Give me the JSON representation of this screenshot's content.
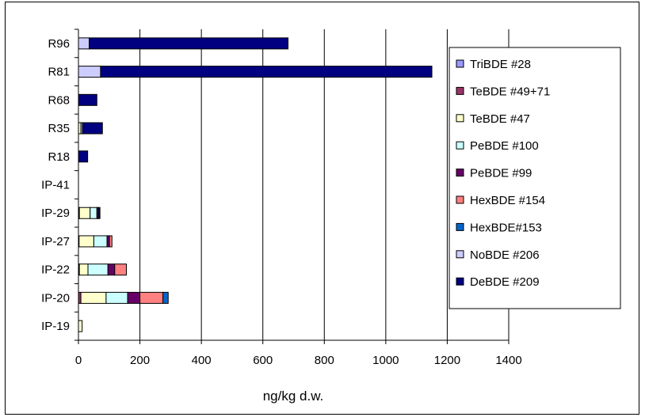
{
  "chart_data": {
    "type": "bar",
    "orientation": "horizontal",
    "stacked": true,
    "categories": [
      "IP-19",
      "IP-20",
      "IP-22",
      "IP-27",
      "IP-29",
      "IP-41",
      "R18",
      "R35",
      "R68",
      "R81",
      "R96"
    ],
    "series": [
      {
        "name": "TriBDE #28",
        "color": "#9999ff",
        "values": [
          0,
          0,
          0,
          0,
          0,
          0,
          0,
          0,
          0,
          0,
          0
        ]
      },
      {
        "name": "TeBDE #49+71",
        "color": "#993366",
        "values": [
          0,
          8,
          3,
          2,
          3,
          0,
          0,
          0,
          0,
          0,
          0
        ]
      },
      {
        "name": "TeBDE #47",
        "color": "#ffffcc",
        "values": [
          12,
          82,
          28,
          48,
          35,
          0,
          0,
          8,
          0,
          0,
          0
        ]
      },
      {
        "name": "PeBDE #100",
        "color": "#ccffff",
        "values": [
          0,
          70,
          65,
          43,
          22,
          0,
          0,
          0,
          0,
          0,
          0
        ]
      },
      {
        "name": "PeBDE #99",
        "color": "#660066",
        "values": [
          0,
          40,
          22,
          8,
          5,
          0,
          0,
          0,
          0,
          0,
          0
        ]
      },
      {
        "name": "HexBDE #154",
        "color": "#ff8080",
        "values": [
          0,
          75,
          38,
          8,
          0,
          0,
          0,
          0,
          0,
          0,
          0
        ]
      },
      {
        "name": "HexBDE#153",
        "color": "#0066cc",
        "values": [
          0,
          17,
          0,
          0,
          0,
          0,
          0,
          0,
          0,
          0,
          0
        ]
      },
      {
        "name": "NoBDE #206",
        "color": "#ccccff",
        "values": [
          0,
          0,
          0,
          0,
          0,
          0,
          0,
          5,
          0,
          72,
          35
        ]
      },
      {
        "name": "DeBDE #209",
        "color": "#000080",
        "values": [
          0,
          0,
          0,
          0,
          5,
          0,
          30,
          65,
          60,
          1078,
          647
        ]
      }
    ],
    "xlabel": "ng/kg d.w.",
    "ylabel": "",
    "xlim": [
      0,
      1400
    ],
    "xticks": [
      "0",
      "200",
      "400",
      "600",
      "800",
      "1000",
      "1200",
      "1400"
    ],
    "grid": "vertical",
    "legend": "right"
  }
}
